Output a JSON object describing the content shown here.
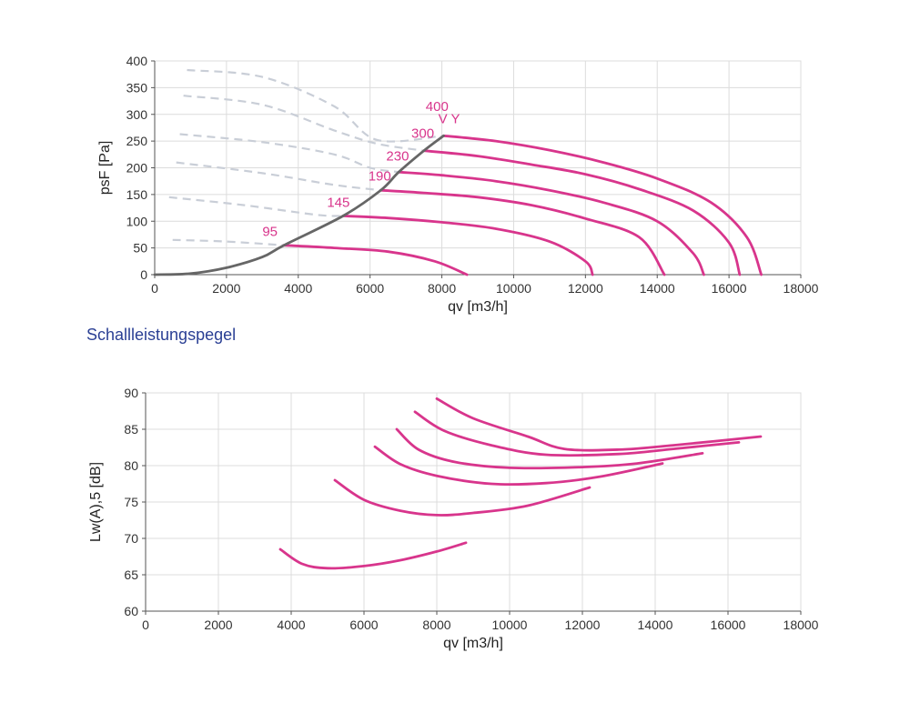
{
  "section_title": "Schallleistungspegel",
  "colors": {
    "accent": "#d8358c",
    "operating_line": "#666666",
    "dashed": "#c9ced7",
    "grid": "#dcdcdc",
    "section_title": "#2a3f94"
  },
  "chart_data": [
    {
      "type": "line",
      "xlabel": "qv [m3/h]",
      "ylabel": "psF [Pa]",
      "xlim": [
        0,
        18000
      ],
      "ylim": [
        0,
        400
      ],
      "x_ticks": [
        0,
        2000,
        4000,
        6000,
        8000,
        10000,
        12000,
        14000,
        16000,
        18000
      ],
      "y_ticks": [
        0,
        50,
        100,
        150,
        200,
        250,
        300,
        350,
        400
      ],
      "grid": true,
      "series": [
        {
          "name": "95",
          "label_at": [
            3000,
            72
          ],
          "points": [
            [
              3600,
              55
            ],
            [
              5000,
              50
            ],
            [
              6500,
              43
            ],
            [
              7800,
              25
            ],
            [
              8700,
              0
            ]
          ]
        },
        {
          "name": "145",
          "label_at": [
            4800,
            127
          ],
          "points": [
            [
              5250,
              110
            ],
            [
              6500,
              106
            ],
            [
              8000,
              98
            ],
            [
              9500,
              86
            ],
            [
              11000,
              62
            ],
            [
              12000,
              25
            ],
            [
              12200,
              0
            ]
          ]
        },
        {
          "name": "190",
          "label_at": [
            5950,
            176
          ],
          "points": [
            [
              6300,
              158
            ],
            [
              7500,
              153
            ],
            [
              9000,
              145
            ],
            [
              10500,
              130
            ],
            [
              12000,
              105
            ],
            [
              13500,
              70
            ],
            [
              14200,
              0
            ]
          ]
        },
        {
          "name": "230",
          "label_at": [
            6450,
            214
          ],
          "points": [
            [
              6800,
              192
            ],
            [
              8000,
              186
            ],
            [
              9500,
              175
            ],
            [
              11000,
              158
            ],
            [
              12500,
              135
            ],
            [
              14000,
              100
            ],
            [
              15000,
              40
            ],
            [
              15300,
              0
            ]
          ]
        },
        {
          "name": "300",
          "label_at": [
            7150,
            256
          ],
          "points": [
            [
              7500,
              232
            ],
            [
              9000,
              222
            ],
            [
              10500,
              206
            ],
            [
              12000,
              188
            ],
            [
              13500,
              160
            ],
            [
              15000,
              120
            ],
            [
              16000,
              60
            ],
            [
              16300,
              0
            ]
          ]
        },
        {
          "name": "400",
          "label_at": [
            7550,
            306
          ],
          "points": [
            [
              8050,
              260
            ],
            [
              9500,
              250
            ],
            [
              11000,
              233
            ],
            [
              12500,
              210
            ],
            [
              14000,
              180
            ],
            [
              15500,
              135
            ],
            [
              16500,
              70
            ],
            [
              16900,
              0
            ]
          ]
        }
      ],
      "operating_line": {
        "name": "V Y",
        "label_at": [
          7900,
          283
        ],
        "points": [
          [
            0,
            0
          ],
          [
            1000,
            2
          ],
          [
            2000,
            13
          ],
          [
            3000,
            33
          ],
          [
            3600,
            55
          ],
          [
            5250,
            110
          ],
          [
            6300,
            158
          ],
          [
            6800,
            192
          ],
          [
            7500,
            232
          ],
          [
            8050,
            260
          ]
        ]
      },
      "dashed_curves": [
        [
          [
            500,
            65
          ],
          [
            2000,
            62
          ],
          [
            3600,
            55
          ]
        ],
        [
          [
            400,
            145
          ],
          [
            2500,
            130
          ],
          [
            4500,
            112
          ],
          [
            5250,
            110
          ]
        ],
        [
          [
            600,
            210
          ],
          [
            3000,
            190
          ],
          [
            5000,
            168
          ],
          [
            6300,
            158
          ]
        ],
        [
          [
            700,
            263
          ],
          [
            3000,
            248
          ],
          [
            5000,
            225
          ],
          [
            6000,
            200
          ],
          [
            6800,
            192
          ]
        ],
        [
          [
            800,
            335
          ],
          [
            3000,
            318
          ],
          [
            5000,
            270
          ],
          [
            6200,
            245
          ],
          [
            7500,
            232
          ]
        ],
        [
          [
            900,
            383
          ],
          [
            3000,
            370
          ],
          [
            5000,
            315
          ],
          [
            6200,
            252
          ],
          [
            8050,
            260
          ]
        ]
      ]
    },
    {
      "type": "line",
      "xlabel": "qv [m3/h]",
      "ylabel": "Lw(A),5 [dB]",
      "xlim": [
        0,
        18000
      ],
      "ylim": [
        60,
        90
      ],
      "x_ticks": [
        0,
        2000,
        4000,
        6000,
        8000,
        10000,
        12000,
        14000,
        16000,
        18000
      ],
      "y_ticks": [
        60,
        65,
        70,
        75,
        80,
        85,
        90
      ],
      "grid": true,
      "series": [
        {
          "points": [
            [
              3700,
              68.5
            ],
            [
              4300,
              66.5
            ],
            [
              5000,
              65.9
            ],
            [
              6000,
              66.2
            ],
            [
              7000,
              67
            ],
            [
              8000,
              68.2
            ],
            [
              8800,
              69.4
            ]
          ]
        },
        {
          "points": [
            [
              5200,
              78
            ],
            [
              6000,
              75.3
            ],
            [
              7000,
              73.8
            ],
            [
              8000,
              73.2
            ],
            [
              9000,
              73.5
            ],
            [
              10500,
              74.5
            ],
            [
              12200,
              77
            ]
          ]
        },
        {
          "points": [
            [
              6300,
              82.6
            ],
            [
              7000,
              80.2
            ],
            [
              8000,
              78.6
            ],
            [
              9500,
              77.5
            ],
            [
              11000,
              77.6
            ],
            [
              12500,
              78.5
            ],
            [
              14200,
              80.3
            ]
          ]
        },
        {
          "points": [
            [
              6900,
              85
            ],
            [
              7500,
              82.2
            ],
            [
              8500,
              80.5
            ],
            [
              10000,
              79.7
            ],
            [
              12000,
              79.8
            ],
            [
              13500,
              80.3
            ],
            [
              15300,
              81.7
            ]
          ]
        },
        {
          "points": [
            [
              7400,
              87.4
            ],
            [
              8200,
              84.8
            ],
            [
              9500,
              82.8
            ],
            [
              11000,
              81.5
            ],
            [
              13000,
              81.6
            ],
            [
              14500,
              82.3
            ],
            [
              16300,
              83.2
            ]
          ]
        },
        {
          "points": [
            [
              8000,
              89.2
            ],
            [
              9000,
              86.5
            ],
            [
              10500,
              84
            ],
            [
              11500,
              82.3
            ],
            [
              13000,
              82.2
            ],
            [
              14500,
              82.8
            ],
            [
              16900,
              84
            ]
          ]
        }
      ]
    }
  ]
}
